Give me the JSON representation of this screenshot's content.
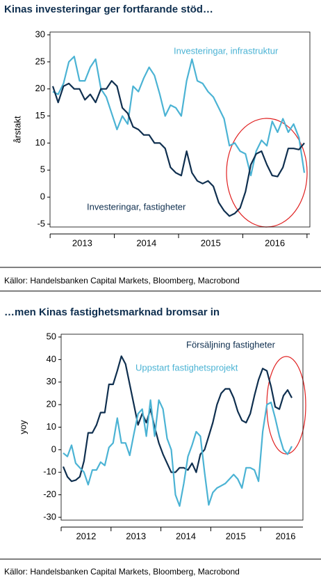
{
  "chart_data": [
    {
      "type": "line",
      "title": "Kinas investeringar ger fortfarande stöd…",
      "ylabel": "årstakt",
      "source": "Källor: Handelsbanken Capital Markets,  Bloomberg, Macrobond",
      "categories": [
        null,
        null,
        null,
        null,
        null,
        null,
        "2013",
        null,
        null,
        null,
        null,
        null,
        null,
        null,
        null,
        null,
        null,
        null,
        "2014",
        null,
        null,
        null,
        null,
        null,
        null,
        null,
        null,
        null,
        null,
        null,
        "2015",
        null,
        null,
        null,
        null,
        null,
        null,
        null,
        null,
        null,
        null,
        null,
        "2016",
        null,
        null,
        null,
        null,
        null
      ],
      "ylim": [
        -5,
        30
      ],
      "yticks": [
        -5,
        0,
        5,
        10,
        15,
        20,
        25,
        30
      ],
      "series": [
        {
          "name": "Investeringar, infrastruktur",
          "color": "#4bb3d4",
          "values": [
            19.5,
            19,
            21,
            25,
            26,
            21.5,
            21.5,
            24,
            25.5,
            20,
            18.5,
            15.5,
            12.5,
            15,
            13.5,
            20.5,
            19.5,
            22,
            24,
            22.5,
            19,
            15,
            17,
            16.5,
            15,
            21.5,
            25.5,
            21.5,
            21,
            19.5,
            18.5,
            16.5,
            14.5,
            9.5,
            10,
            8.5,
            8,
            4,
            8.5,
            10.5,
            9.5,
            14,
            12,
            14.5,
            12,
            13.5,
            11,
            4.5
          ]
        },
        {
          "name": "Investeringar, fastigheter",
          "color": "#0f2f4f",
          "values": [
            20.5,
            17.5,
            20.5,
            21,
            20,
            20,
            18,
            19,
            17.5,
            20,
            20,
            21.5,
            20.5,
            16.5,
            15.5,
            13,
            12.5,
            11.5,
            11.5,
            10,
            10,
            9,
            5.5,
            4.5,
            4,
            8.5,
            4.5,
            3,
            2.5,
            3,
            2,
            -1,
            -2.5,
            -3.5,
            -3,
            -2,
            1,
            6,
            8,
            8.5,
            6,
            4,
            3.8,
            5.5,
            9,
            9,
            8.8,
            10
          ]
        }
      ]
    },
    {
      "type": "line",
      "title": "…men Kinas fastighetsmarknad bromsar in",
      "ylabel": "yoy",
      "source": "Källor: Handelsbanken Capital Markets, Bloomberg, Macrobond",
      "categories": [
        null,
        null,
        null,
        null,
        null,
        null,
        "2012",
        null,
        null,
        null,
        null,
        null,
        null,
        null,
        null,
        null,
        null,
        null,
        "2013",
        null,
        null,
        null,
        null,
        null,
        null,
        null,
        null,
        null,
        null,
        null,
        "2014",
        null,
        null,
        null,
        null,
        null,
        null,
        null,
        null,
        null,
        null,
        null,
        "2015",
        null,
        null,
        null,
        null,
        null,
        null,
        null,
        null,
        null,
        null,
        null,
        "2016",
        null
      ],
      "ylim": [
        -30,
        50
      ],
      "yticks": [
        -30,
        -20,
        -10,
        0,
        10,
        20,
        30,
        40,
        50
      ],
      "series": [
        {
          "name": "Försäljning fastigheter",
          "color": "#0f2f4f",
          "values": [
            -7.5,
            -12,
            -14,
            -13.5,
            -12,
            -5,
            7.5,
            7.5,
            11,
            16.5,
            16.5,
            29,
            29,
            35,
            41.5,
            38,
            29,
            20,
            11,
            16,
            12,
            18,
            10,
            3,
            -2,
            -6,
            -10,
            -10,
            -8,
            -8,
            -9,
            -6,
            -10,
            -2,
            0,
            6,
            12,
            20,
            25,
            27,
            27,
            23,
            17,
            13,
            12,
            16,
            24,
            31,
            36,
            35,
            28,
            19,
            18,
            24,
            26.5,
            23
          ]
        },
        {
          "name": "Uppstart fastighetsprojekt",
          "color": "#4bb3d4",
          "values": [
            -1.5,
            -3,
            2,
            -6,
            -8,
            -10,
            -15.5,
            -9,
            -9,
            -5.5,
            -7,
            1,
            3,
            14,
            3,
            3,
            -2.5,
            7,
            16,
            18,
            6,
            22,
            6,
            22,
            18,
            5,
            0,
            -20,
            -25,
            -15,
            -3,
            2,
            8,
            6,
            -10,
            -24.5,
            -19,
            -17,
            -16,
            -15,
            -13,
            -11,
            -13,
            -17,
            -8,
            -8,
            -9,
            -14,
            8,
            20,
            21,
            14,
            6,
            0,
            -2,
            1.5
          ]
        }
      ]
    }
  ]
}
